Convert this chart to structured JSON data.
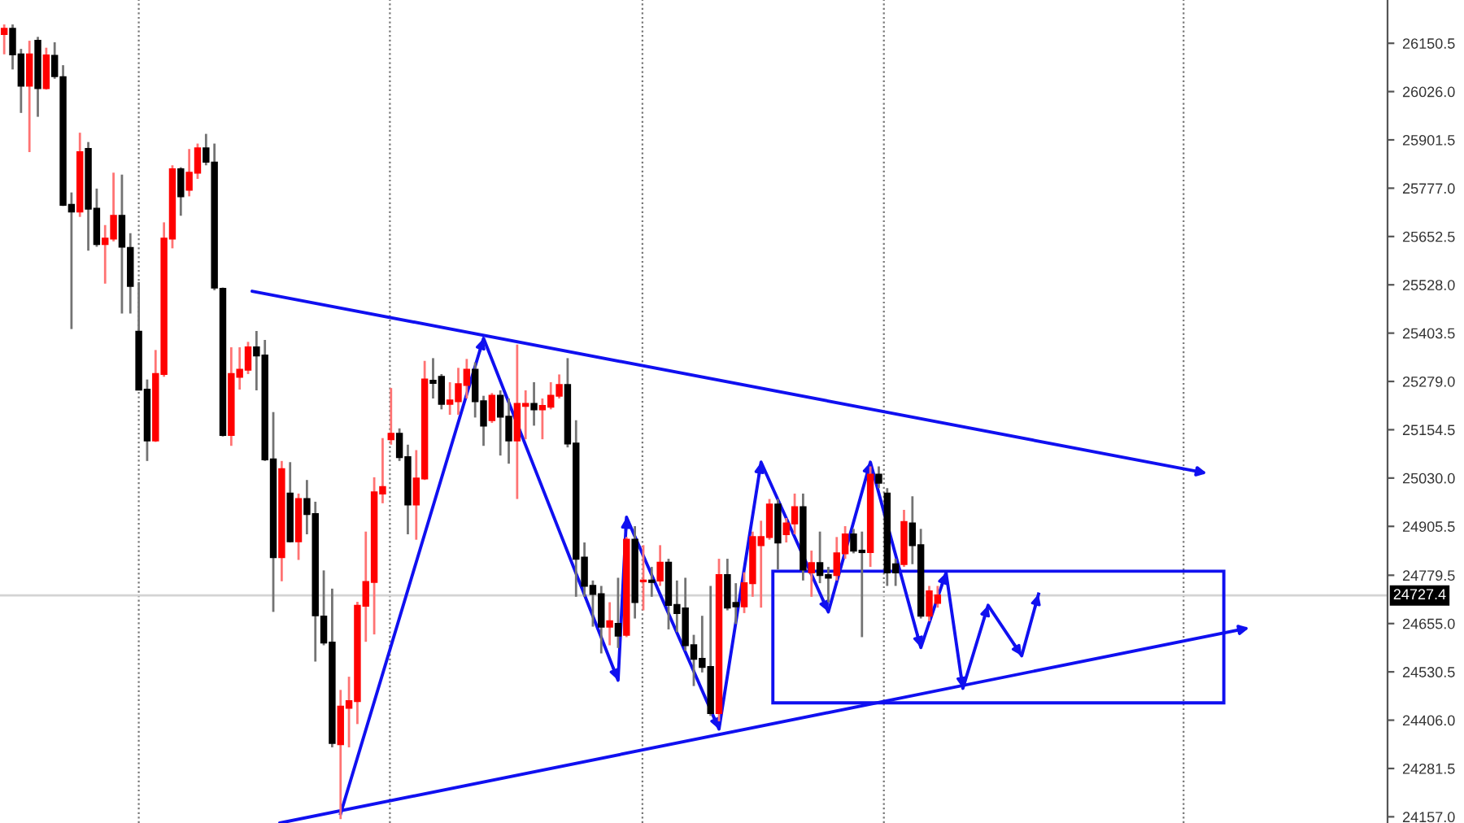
{
  "chart_data": {
    "type": "candlestick",
    "categories": [
      null,
      null,
      null,
      null,
      null,
      null,
      null,
      null,
      null,
      null,
      null,
      null,
      null,
      null,
      null,
      null,
      null,
      null,
      null,
      null,
      null,
      null,
      null,
      null,
      null,
      null,
      null,
      null,
      null,
      null,
      null,
      null,
      null,
      null,
      null,
      null,
      null,
      null,
      null,
      null,
      null,
      null,
      null,
      null,
      null,
      null,
      null,
      null,
      null,
      null,
      null,
      null,
      null,
      null,
      null,
      null,
      null,
      null,
      null,
      null,
      null,
      null,
      null,
      null,
      null,
      null,
      null,
      null,
      null,
      null,
      null,
      null,
      null,
      null,
      null,
      null,
      null,
      null,
      null,
      null,
      null,
      null,
      null,
      null,
      null,
      null,
      null,
      null,
      null,
      null,
      null,
      null,
      null,
      null,
      null,
      null,
      null,
      null,
      null,
      null,
      null,
      null,
      null,
      null,
      null,
      null,
      null,
      null,
      null,
      null,
      null,
      null,
      null,
      null,
      null,
      null,
      null,
      null,
      null,
      null,
      null,
      null,
      null,
      null,
      null,
      null,
      null,
      null,
      null,
      null,
      null,
      null,
      null,
      null,
      null,
      null,
      null,
      null,
      null,
      null,
      null,
      null,
      null,
      null,
      null,
      null,
      null,
      null,
      null,
      null,
      null,
      null,
      null,
      null,
      null,
      null,
      null,
      null,
      null,
      null,
      null,
      null,
      null,
      null,
      null
    ],
    "ohlc": [
      [
        26174,
        26199,
        26122,
        26188
      ],
      [
        26188,
        26199,
        26083,
        26122
      ],
      [
        26122,
        26136,
        25971,
        26041
      ],
      [
        26041,
        26157,
        25870,
        26122
      ],
      [
        26157,
        26167,
        25961,
        26035
      ],
      [
        26035,
        26139,
        26031,
        26119
      ],
      [
        26118,
        26153,
        26059,
        26066
      ],
      [
        26063,
        26094,
        25731,
        25734
      ],
      [
        25734,
        25766,
        25414,
        25717
      ],
      [
        25717,
        25920,
        25703,
        25870
      ],
      [
        25878,
        25896,
        25616,
        25724
      ],
      [
        25724,
        25776,
        25626,
        25633
      ],
      [
        25633,
        25682,
        25531,
        25647
      ],
      [
        25647,
        25817,
        25640,
        25706
      ],
      [
        25706,
        25812,
        25454,
        25626
      ],
      [
        25623,
        25661,
        25454,
        25525
      ],
      [
        25407,
        25535,
        25256,
        25258
      ],
      [
        25258,
        25284,
        25074,
        25127
      ],
      [
        25127,
        25360,
        25123,
        25298
      ],
      [
        25298,
        25689,
        25291,
        25647
      ],
      [
        25647,
        25836,
        25622,
        25826
      ],
      [
        25826,
        25831,
        25706,
        25756
      ],
      [
        25773,
        25878,
        25756,
        25817
      ],
      [
        25817,
        25892,
        25801,
        25880
      ],
      [
        25880,
        25917,
        25836,
        25845
      ],
      [
        25843,
        25892,
        25514,
        25521
      ],
      [
        25518,
        25521,
        25137,
        25141
      ],
      [
        25141,
        25367,
        25113,
        25298
      ],
      [
        25291,
        25367,
        25258,
        25309
      ],
      [
        25309,
        25381,
        25298,
        25367
      ],
      [
        25367,
        25409,
        25256,
        25346
      ],
      [
        25346,
        25386,
        25074,
        25078
      ],
      [
        25078,
        25200,
        24685,
        24826
      ],
      [
        24826,
        25074,
        24764,
        25053
      ],
      [
        24990,
        25071,
        24864,
        24867
      ],
      [
        24867,
        24990,
        24819,
        24976
      ],
      [
        24976,
        25025,
        24885,
        24937
      ],
      [
        24937,
        24969,
        24557,
        24676
      ],
      [
        24673,
        24792,
        24599,
        24606
      ],
      [
        24606,
        24745,
        24336,
        24347
      ],
      [
        24344,
        24484,
        24151,
        24441
      ],
      [
        24438,
        24518,
        24336,
        24455
      ],
      [
        24455,
        24711,
        24396,
        24701
      ],
      [
        24701,
        24892,
        24608,
        24762
      ],
      [
        24762,
        25032,
        24627,
        24993
      ],
      [
        24990,
        25133,
        24965,
        25007
      ],
      [
        25130,
        25262,
        25116,
        25144
      ],
      [
        25144,
        25158,
        25074,
        25084
      ],
      [
        25084,
        25116,
        24885,
        24962
      ],
      [
        24962,
        25102,
        24871,
        25029
      ],
      [
        25029,
        25332,
        25025,
        25284
      ],
      [
        25281,
        25339,
        25235,
        25275
      ],
      [
        25291,
        25298,
        25207,
        25221
      ],
      [
        25221,
        25277,
        25193,
        25230
      ],
      [
        25228,
        25314,
        25193,
        25272
      ],
      [
        25270,
        25337,
        25235,
        25309
      ],
      [
        25309,
        25328,
        25186,
        25228
      ],
      [
        25228,
        25242,
        25113,
        25165
      ],
      [
        25179,
        25249,
        25172,
        25242
      ],
      [
        25242,
        25256,
        25088,
        25188
      ],
      [
        25188,
        25235,
        25067,
        25127
      ],
      [
        25127,
        25374,
        24976,
        25221
      ],
      [
        25216,
        25256,
        25130,
        25221
      ],
      [
        25221,
        25277,
        25165,
        25207
      ],
      [
        25207,
        25235,
        25130,
        25216
      ],
      [
        25214,
        25277,
        25207,
        25242
      ],
      [
        25242,
        25297,
        25235,
        25270
      ],
      [
        25270,
        25339,
        25109,
        25119
      ],
      [
        25119,
        25179,
        24724,
        24822
      ],
      [
        24825,
        24864,
        24724,
        24752
      ],
      [
        24752,
        24766,
        24647,
        24731
      ],
      [
        24731,
        24752,
        24578,
        24647
      ],
      [
        24647,
        24710,
        24599,
        24661
      ],
      [
        24654,
        24773,
        24592,
        24624
      ],
      [
        24626,
        24878,
        24620,
        24871
      ],
      [
        24871,
        24906,
        24668,
        24710
      ],
      [
        24764,
        24857,
        24689,
        24766
      ],
      [
        24766,
        24801,
        24724,
        24762
      ],
      [
        24766,
        24857,
        24752,
        24812
      ],
      [
        24812,
        24822,
        24640,
        24703
      ],
      [
        24703,
        24766,
        24633,
        24682
      ],
      [
        24694,
        24773,
        24585,
        24599
      ],
      [
        24599,
        24626,
        24494,
        24564
      ],
      [
        24564,
        24675,
        24529,
        24543
      ],
      [
        24543,
        24752,
        24417,
        24424
      ],
      [
        24424,
        24822,
        24403,
        24780
      ],
      [
        24780,
        24822,
        24689,
        24696
      ],
      [
        24708,
        24759,
        24654,
        24699
      ],
      [
        24699,
        24787,
        24682,
        24759
      ],
      [
        24759,
        24892,
        24724,
        24878
      ],
      [
        24857,
        24920,
        24696,
        24878
      ],
      [
        24878,
        24976,
        24871,
        24962
      ],
      [
        24962,
        24976,
        24794,
        24864
      ],
      [
        24885,
        24927,
        24864,
        24913
      ],
      [
        24913,
        24990,
        24885,
        24955
      ],
      [
        24955,
        24990,
        24766,
        24794
      ],
      [
        24787,
        24843,
        24724,
        24811
      ],
      [
        24811,
        24892,
        24759,
        24780
      ],
      [
        24780,
        24801,
        24710,
        24773
      ],
      [
        24780,
        24878,
        24766,
        24836
      ],
      [
        24836,
        24906,
        24822,
        24885
      ],
      [
        24885,
        24899,
        24836,
        24843
      ],
      [
        24843,
        24892,
        24620,
        24839
      ],
      [
        24839,
        25060,
        24801,
        25039
      ],
      [
        25039,
        25060,
        25004,
        25018
      ],
      [
        24990,
        25004,
        24752,
        24787
      ],
      [
        24808,
        24822,
        24752,
        24787
      ],
      [
        24808,
        24948,
        24801,
        24917
      ],
      [
        24913,
        24983,
        24808,
        24857
      ],
      [
        24857,
        24899,
        24668,
        24675
      ],
      [
        24675,
        24752,
        24661,
        24738
      ],
      [
        24708,
        24752,
        24696,
        24727.4
      ],
      null,
      null,
      null,
      null,
      null,
      null,
      null,
      null,
      null,
      null,
      null,
      null,
      null,
      null,
      null,
      null,
      null,
      null,
      null,
      null,
      null,
      null,
      null,
      null,
      null,
      null,
      null,
      null,
      null,
      null,
      null,
      null,
      null,
      null,
      null,
      null,
      null,
      null,
      null,
      null,
      null,
      null,
      null,
      null,
      null,
      null,
      null,
      null,
      null,
      null,
      null,
      null,
      null
    ],
    "colors": [
      "#ff0000",
      "#000000",
      "#000000",
      "#ff0000",
      "#000000",
      "#ff0000",
      "#000000",
      "#000000",
      "#000000",
      "#ff0000",
      "#000000",
      "#000000",
      "#ff0000",
      "#ff0000",
      "#000000",
      "#000000",
      "#000000",
      "#000000",
      "#ff0000",
      "#ff0000",
      "#ff0000",
      "#000000",
      "#ff0000",
      "#ff0000",
      "#000000",
      "#000000",
      "#000000",
      "#ff0000",
      "#ff0000",
      "#ff0000",
      "#000000",
      "#000000",
      "#000000",
      "#ff0000",
      "#000000",
      "#ff0000",
      "#000000",
      "#000000",
      "#000000",
      "#000000",
      "#ff0000",
      "#ff0000",
      "#ff0000",
      "#ff0000",
      "#ff0000",
      "#ff0000",
      "#ff0000",
      "#000000",
      "#000000",
      "#ff0000",
      "#ff0000",
      "#000000",
      "#000000",
      "#ff0000",
      "#ff0000",
      "#ff0000",
      "#000000",
      "#000000",
      "#ff0000",
      "#000000",
      "#000000",
      "#ff0000",
      "#ff0000",
      "#000000",
      "#ff0000",
      "#ff0000",
      "#ff0000",
      "#000000",
      "#000000",
      "#000000",
      "#000000",
      "#000000",
      "#ff0000",
      "#000000",
      "#ff0000",
      "#000000",
      "#ff0000",
      "#000000",
      "#ff0000",
      "#000000",
      "#000000",
      "#000000",
      "#000000",
      "#000000",
      "#000000",
      "#ff0000",
      "#000000",
      "#000000",
      "#ff0000",
      "#ff0000",
      "#ff0000",
      "#ff0000",
      "#000000",
      "#ff0000",
      "#ff0000",
      "#000000",
      "#ff0000",
      "#000000",
      "#000000",
      "#ff0000",
      "#ff0000",
      "#000000",
      "#000000",
      "#ff0000",
      "#000000",
      "#000000",
      "#000000",
      "#ff0000",
      "#000000",
      "#000000",
      "#ff0000",
      "#ff0000",
      null,
      null,
      null,
      null,
      null,
      null,
      null,
      null,
      null,
      null,
      null,
      null,
      null,
      null,
      null,
      null,
      null,
      null,
      null,
      null,
      null,
      null,
      null,
      null,
      null,
      null,
      null,
      null,
      null,
      null,
      null,
      null,
      null,
      null,
      null,
      null,
      null,
      null,
      null,
      null,
      null,
      null,
      null,
      null,
      null,
      null,
      null,
      null,
      null,
      null,
      null,
      null,
      null
    ],
    "ylim": [
      24141,
      26262
    ],
    "yticks": [
      {
        "value": 24157,
        "label": "24157.0"
      },
      {
        "value": 24281.5,
        "label": "24281.5"
      },
      {
        "value": 24406,
        "label": "24406.0"
      },
      {
        "value": 24530.5,
        "label": "24530.5"
      },
      {
        "value": 24655,
        "label": "24655.0"
      },
      {
        "value": 24779.5,
        "label": "24779.5"
      },
      {
        "value": 24905.5,
        "label": "24905.5"
      },
      {
        "value": 25030,
        "label": "25030.0"
      },
      {
        "value": 25154.5,
        "label": "25154.5"
      },
      {
        "value": 25279,
        "label": "25279.0"
      },
      {
        "value": 25403.5,
        "label": "25403.5"
      },
      {
        "value": 25528,
        "label": "25528.0"
      },
      {
        "value": 25652.5,
        "label": "25652.5"
      },
      {
        "value": 25777,
        "label": "25777.0"
      },
      {
        "value": 25901.5,
        "label": "25901.5"
      },
      {
        "value": 26026,
        "label": "26026.0"
      },
      {
        "value": 26150.5,
        "label": "26150.5"
      }
    ],
    "tick_labels": "y",
    "series": [
      {
        "type": "line",
        "color": "#1010f0",
        "values": [
          null,
          null,
          null,
          null,
          null,
          null,
          null,
          null,
          null,
          null,
          null,
          null,
          null,
          null,
          null,
          null,
          null,
          null,
          null,
          null,
          null,
          null,
          null,
          null,
          null,
          null,
          null,
          null,
          null,
          null,
          null,
          null,
          null,
          null,
          null,
          null,
          null,
          null,
          null,
          null,
          24165,
          null,
          null,
          null,
          null,
          null,
          null,
          null,
          null,
          null,
          null,
          null,
          null,
          null,
          null,
          null,
          null,
          25390,
          null,
          null,
          null,
          null,
          null,
          null,
          null,
          null,
          null,
          null,
          null,
          null,
          null,
          null,
          null,
          24509,
          24929,
          null,
          null,
          null,
          null,
          null,
          null,
          null,
          null,
          null,
          null,
          24383,
          null,
          null,
          null,
          null,
          25071,
          null,
          null,
          null,
          null,
          null,
          null,
          null,
          24685,
          null,
          null,
          null,
          null,
          25071,
          null,
          null,
          null,
          null,
          null,
          24593,
          null,
          null,
          24786,
          null,
          24488,
          null,
          null,
          24702,
          null,
          null,
          null,
          24572,
          null,
          24731,
          null,
          null,
          null,
          null,
          null,
          null,
          null,
          null,
          null,
          null,
          null,
          null,
          null,
          null,
          null,
          null,
          null,
          null,
          null,
          null,
          null,
          null,
          null,
          null,
          null,
          null,
          null,
          null,
          null,
          null,
          null,
          null,
          null,
          null,
          null,
          null,
          null,
          null,
          null,
          null,
          null
        ]
      }
    ],
    "ref_lines": [
      {
        "axis": "y",
        "value": 24727.4,
        "label": "24727.4",
        "color": "#d3d3d3"
      }
    ]
  }
}
